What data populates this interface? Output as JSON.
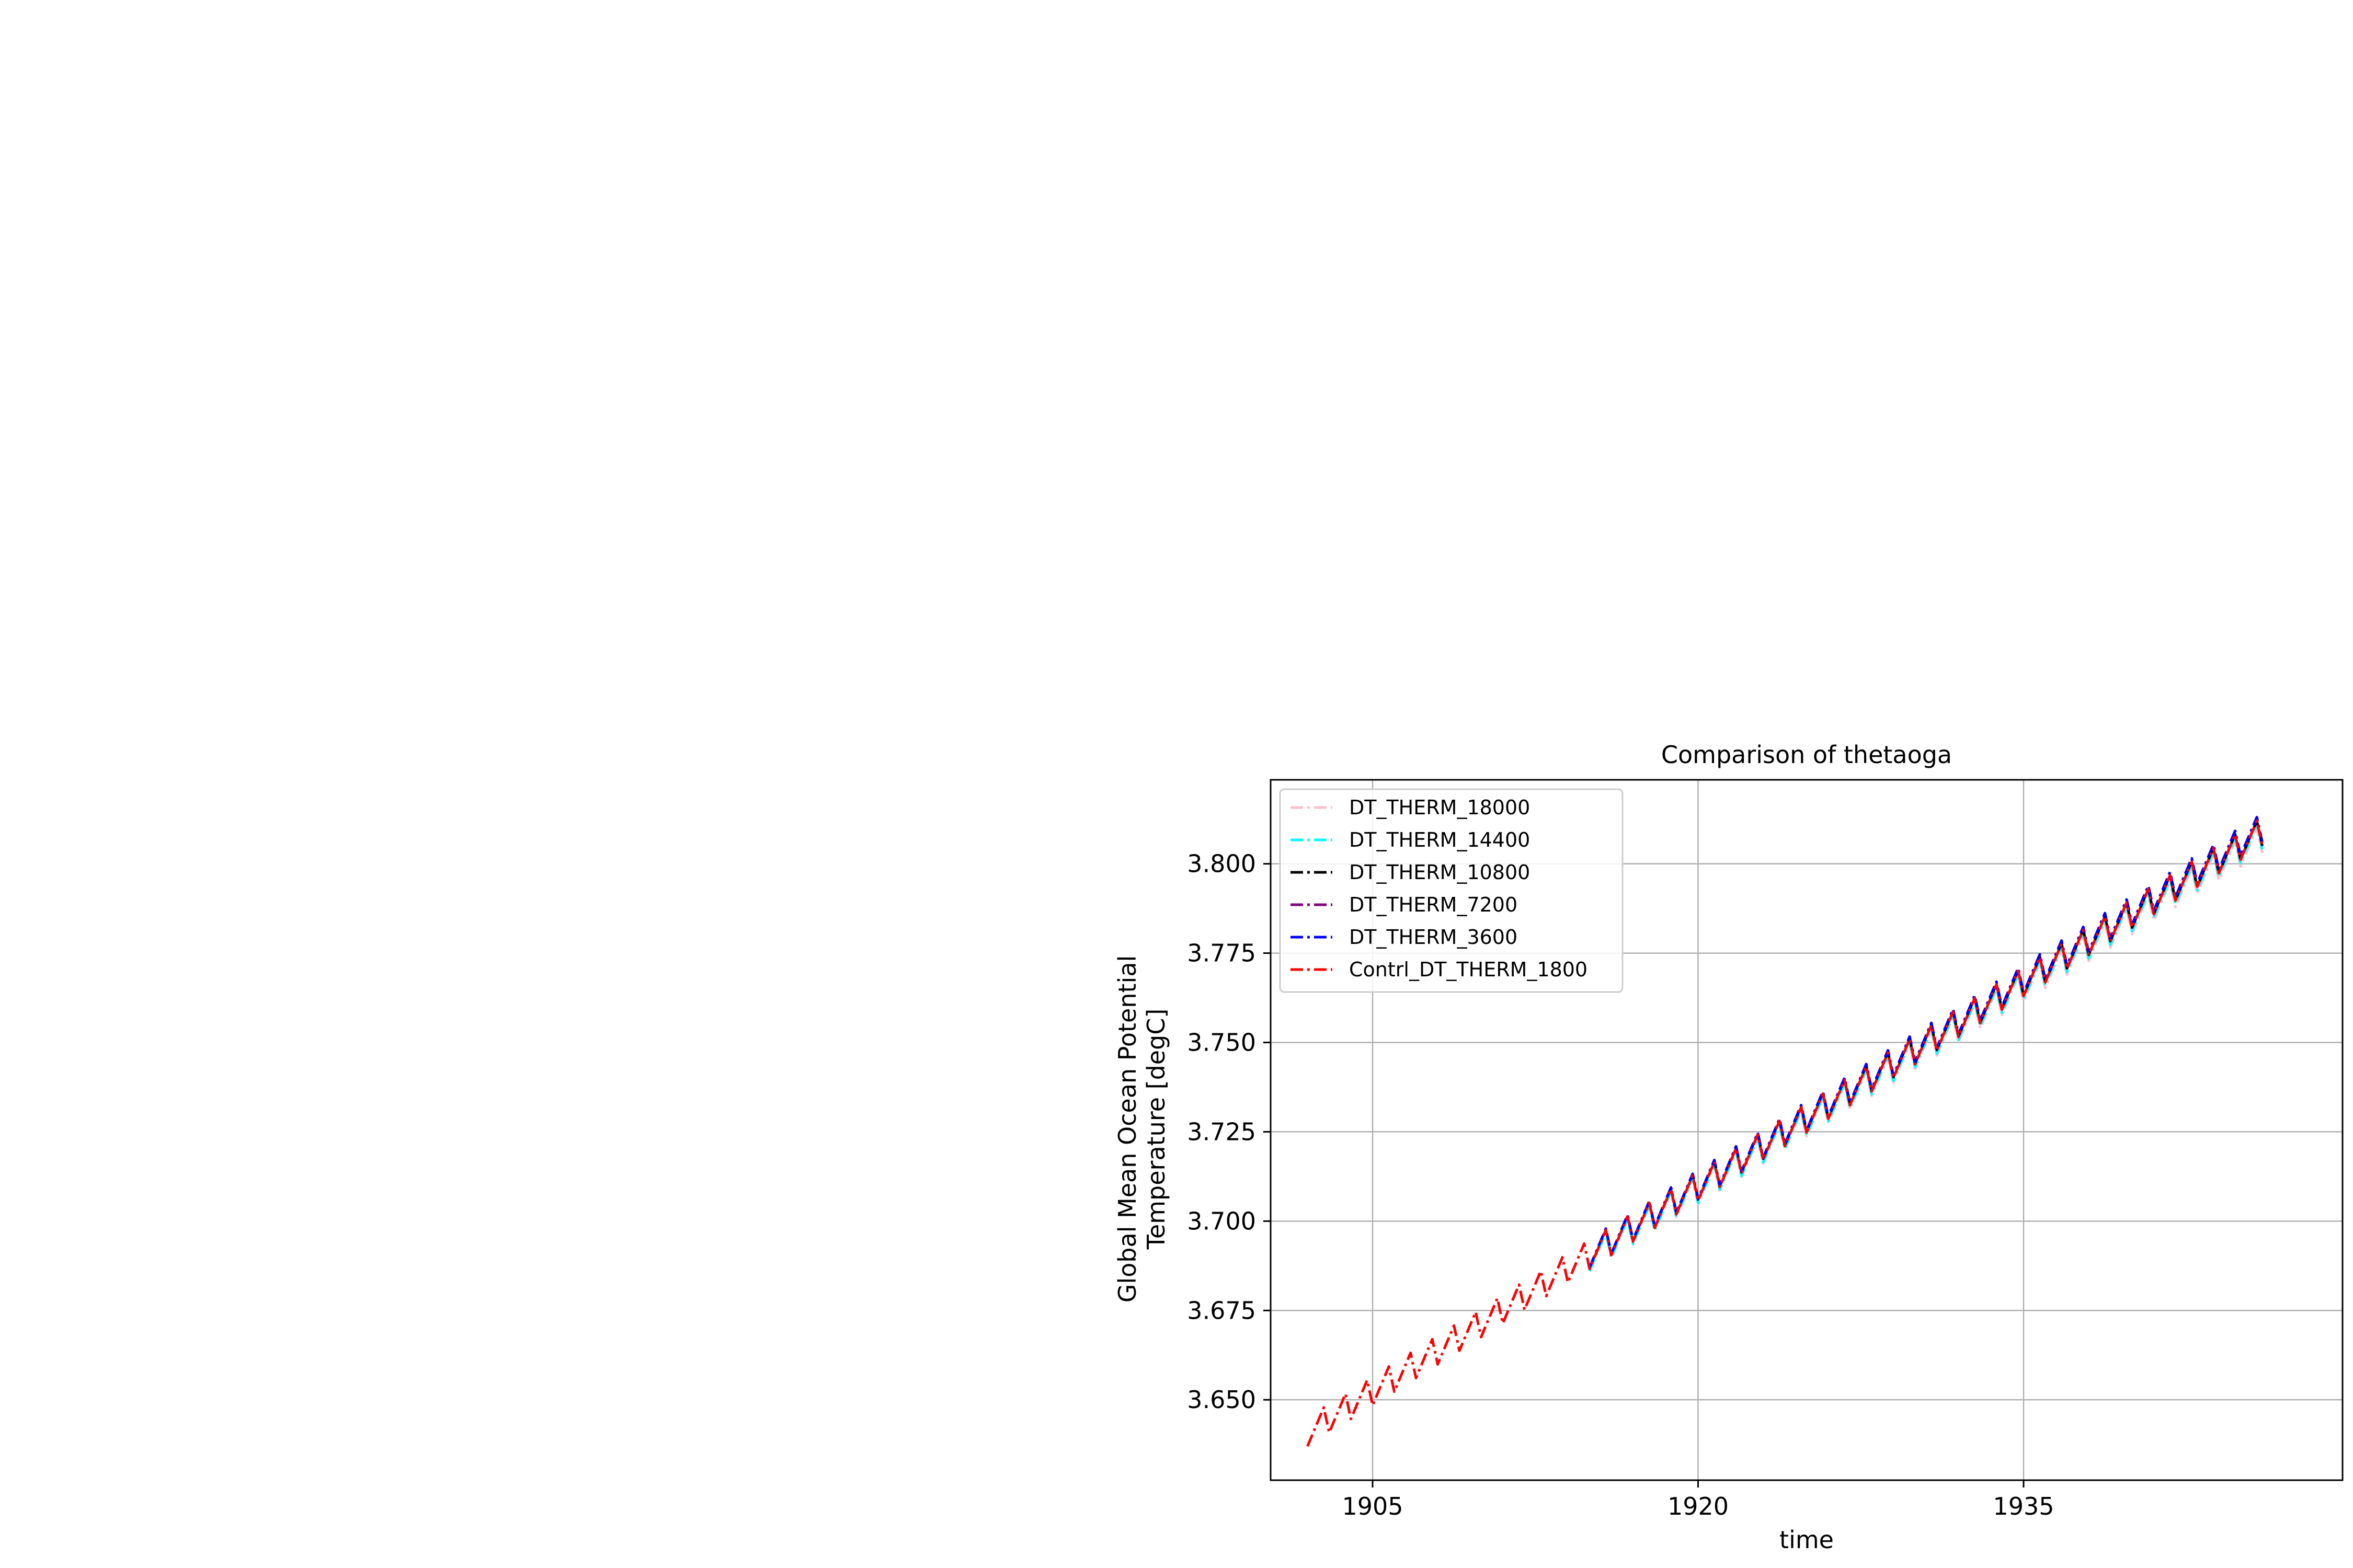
{
  "chart_data": {
    "type": "line",
    "title": "Comparison of thetaoga",
    "xlabel": "time",
    "ylabel_lines": [
      "Global Mean Ocean Potential",
      "Temperature [degC]"
    ],
    "xlim": [
      1900.3,
      1949.7
    ],
    "ylim": [
      3.6275,
      3.8235
    ],
    "x_ticks": [
      {
        "value": 1905,
        "label": "1905"
      },
      {
        "value": 1920,
        "label": "1920"
      },
      {
        "value": 1935,
        "label": "1935"
      }
    ],
    "y_ticks": [
      {
        "value": 3.65,
        "label": "3.650"
      },
      {
        "value": 3.675,
        "label": "3.675"
      },
      {
        "value": 3.7,
        "label": "3.700"
      },
      {
        "value": 3.725,
        "label": "3.725"
      },
      {
        "value": 3.75,
        "label": "3.750"
      },
      {
        "value": 3.775,
        "label": "3.775"
      },
      {
        "value": 3.8,
        "label": "3.800"
      }
    ],
    "grid": true,
    "legend_position": "upper-left",
    "line_style": "dash-dot",
    "seasonal_cycle": "annual sawtooth, amplitude ~0.008 degC",
    "series": [
      {
        "name": "DT_THERM_18000",
        "color": "#ffc0cb",
        "x_start": 1915.0,
        "x_end": 1946.0,
        "y_start": 3.69,
        "y_end": 3.807
      },
      {
        "name": "DT_THERM_14400",
        "color": "#00ffff",
        "x_start": 1915.0,
        "x_end": 1946.0,
        "y_start": 3.69,
        "y_end": 3.808
      },
      {
        "name": "DT_THERM_10800",
        "color": "#000000",
        "x_start": 1915.0,
        "x_end": 1946.0,
        "y_start": 3.691,
        "y_end": 3.809
      },
      {
        "name": "DT_THERM_7200",
        "color": "#800080",
        "x_start": 1915.0,
        "x_end": 1946.0,
        "y_start": 3.691,
        "y_end": 3.81
      },
      {
        "name": "DT_THERM_3600",
        "color": "#0000ff",
        "x_start": 1915.0,
        "x_end": 1946.0,
        "y_start": 3.691,
        "y_end": 3.81
      },
      {
        "name": "Contrl_DT_THERM_1800",
        "color": "#ff0000",
        "x_start": 1902.0,
        "x_end": 1946.0,
        "y_start": 3.641,
        "y_end": 3.809
      }
    ]
  }
}
